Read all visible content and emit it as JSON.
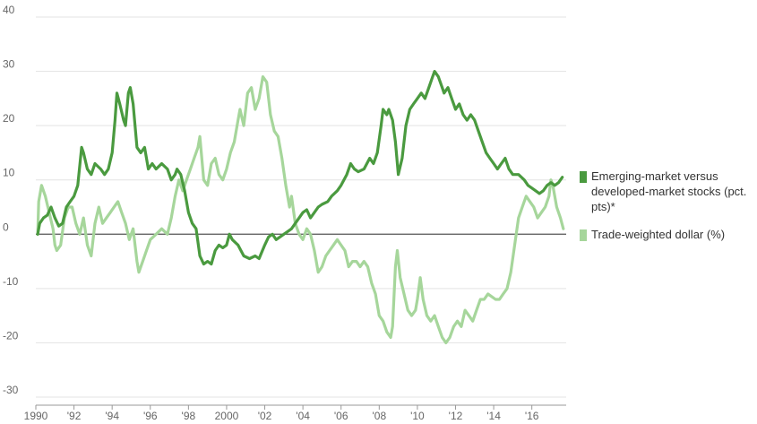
{
  "chart_data": {
    "type": "line",
    "title": "",
    "xlabel": "",
    "ylabel": "",
    "xlim": [
      1990,
      2017.8
    ],
    "ylim": [
      -30,
      40
    ],
    "yticks": [
      40,
      30,
      20,
      10,
      0,
      -10,
      -20,
      -30
    ],
    "ytick_labels": [
      "40",
      "30",
      "20",
      "10",
      "0",
      "-10",
      "-20",
      "-30"
    ],
    "xticks": [
      1990,
      1992,
      1994,
      1996,
      1998,
      2000,
      2002,
      2004,
      2006,
      2008,
      2010,
      2012,
      2014,
      2016
    ],
    "xtick_labels": [
      "1990",
      "'92",
      "'94",
      "'96",
      "'98",
      "2000",
      "'02",
      "'04",
      "'06",
      "'08",
      "'10",
      "'12",
      "'14",
      "'16"
    ],
    "grid": "horizontal",
    "legend_position": "right",
    "series": [
      {
        "name": "Emerging-market versus developed-market stocks (pct. pts)*",
        "color": "#4a9a3f",
        "points": [
          [
            1990.1,
            0
          ],
          [
            1990.2,
            2
          ],
          [
            1990.4,
            3
          ],
          [
            1990.6,
            3.5
          ],
          [
            1990.8,
            5
          ],
          [
            1991.0,
            3
          ],
          [
            1991.2,
            1.5
          ],
          [
            1991.4,
            2
          ],
          [
            1991.6,
            5
          ],
          [
            1991.8,
            6
          ],
          [
            1992.0,
            7
          ],
          [
            1992.2,
            9
          ],
          [
            1992.4,
            16
          ],
          [
            1992.5,
            15
          ],
          [
            1992.7,
            12
          ],
          [
            1992.9,
            11
          ],
          [
            1993.1,
            13
          ],
          [
            1993.4,
            12
          ],
          [
            1993.6,
            11
          ],
          [
            1993.8,
            12
          ],
          [
            1994.0,
            15
          ],
          [
            1994.15,
            21
          ],
          [
            1994.25,
            26
          ],
          [
            1994.4,
            24
          ],
          [
            1994.6,
            21
          ],
          [
            1994.7,
            20
          ],
          [
            1994.85,
            26
          ],
          [
            1994.95,
            27
          ],
          [
            1995.1,
            24
          ],
          [
            1995.3,
            16
          ],
          [
            1995.5,
            15
          ],
          [
            1995.7,
            16
          ],
          [
            1995.9,
            12
          ],
          [
            1996.1,
            13
          ],
          [
            1996.3,
            12
          ],
          [
            1996.6,
            13
          ],
          [
            1996.9,
            12
          ],
          [
            1997.1,
            10
          ],
          [
            1997.3,
            11
          ],
          [
            1997.4,
            12
          ],
          [
            1997.6,
            11
          ],
          [
            1997.8,
            8
          ],
          [
            1998.0,
            4
          ],
          [
            1998.2,
            2
          ],
          [
            1998.4,
            1
          ],
          [
            1998.6,
            -4
          ],
          [
            1998.8,
            -5.5
          ],
          [
            1999.0,
            -5
          ],
          [
            1999.2,
            -5.5
          ],
          [
            1999.4,
            -3
          ],
          [
            1999.6,
            -2
          ],
          [
            1999.8,
            -2.5
          ],
          [
            2000.0,
            -2
          ],
          [
            2000.15,
            0
          ],
          [
            2000.3,
            -1
          ],
          [
            2000.6,
            -2
          ],
          [
            2000.9,
            -4
          ],
          [
            2001.2,
            -4.5
          ],
          [
            2001.5,
            -4
          ],
          [
            2001.7,
            -4.5
          ],
          [
            2002.0,
            -2
          ],
          [
            2002.2,
            -0.5
          ],
          [
            2002.4,
            0
          ],
          [
            2002.6,
            -1
          ],
          [
            2002.8,
            -0.5
          ],
          [
            2003.0,
            0
          ],
          [
            2003.2,
            0.5
          ],
          [
            2003.4,
            1
          ],
          [
            2003.6,
            2
          ],
          [
            2003.8,
            3
          ],
          [
            2004.0,
            4
          ],
          [
            2004.2,
            4.5
          ],
          [
            2004.4,
            3
          ],
          [
            2004.6,
            4
          ],
          [
            2004.8,
            5
          ],
          [
            2005.0,
            5.5
          ],
          [
            2005.3,
            6
          ],
          [
            2005.5,
            7
          ],
          [
            2005.8,
            8
          ],
          [
            2006.0,
            9
          ],
          [
            2006.3,
            11
          ],
          [
            2006.5,
            13
          ],
          [
            2006.7,
            12
          ],
          [
            2006.9,
            11.5
          ],
          [
            2007.2,
            12
          ],
          [
            2007.5,
            14
          ],
          [
            2007.7,
            13
          ],
          [
            2007.9,
            15
          ],
          [
            2008.1,
            20
          ],
          [
            2008.2,
            23
          ],
          [
            2008.4,
            22
          ],
          [
            2008.5,
            23
          ],
          [
            2008.7,
            21
          ],
          [
            2008.85,
            17
          ],
          [
            2009.0,
            11
          ],
          [
            2009.2,
            14
          ],
          [
            2009.4,
            20
          ],
          [
            2009.6,
            23
          ],
          [
            2009.8,
            24
          ],
          [
            2010.0,
            25
          ],
          [
            2010.2,
            26
          ],
          [
            2010.4,
            25
          ],
          [
            2010.6,
            27
          ],
          [
            2010.8,
            29
          ],
          [
            2010.9,
            30
          ],
          [
            2011.1,
            29
          ],
          [
            2011.3,
            27
          ],
          [
            2011.4,
            26
          ],
          [
            2011.6,
            27
          ],
          [
            2011.8,
            25
          ],
          [
            2012.0,
            23
          ],
          [
            2012.2,
            24
          ],
          [
            2012.4,
            22
          ],
          [
            2012.6,
            21
          ],
          [
            2012.8,
            22
          ],
          [
            2013.0,
            21
          ],
          [
            2013.2,
            19
          ],
          [
            2013.4,
            17
          ],
          [
            2013.6,
            15
          ],
          [
            2013.8,
            14
          ],
          [
            2014.0,
            13
          ],
          [
            2014.2,
            12
          ],
          [
            2014.4,
            13
          ],
          [
            2014.6,
            14
          ],
          [
            2014.8,
            12
          ],
          [
            2015.0,
            11
          ],
          [
            2015.3,
            11
          ],
          [
            2015.6,
            10
          ],
          [
            2015.8,
            9
          ],
          [
            2016.0,
            8.5
          ],
          [
            2016.2,
            8
          ],
          [
            2016.4,
            7.5
          ],
          [
            2016.6,
            8
          ],
          [
            2016.8,
            9
          ],
          [
            2017.0,
            9.5
          ],
          [
            2017.2,
            9
          ],
          [
            2017.4,
            9.5
          ],
          [
            2017.6,
            10.5
          ]
        ]
      },
      {
        "name": "Trade-weighted dollar (%)",
        "color": "#a6d69b",
        "points": [
          [
            1990.1,
            0
          ],
          [
            1990.15,
            6
          ],
          [
            1990.3,
            9
          ],
          [
            1990.5,
            7
          ],
          [
            1990.7,
            4
          ],
          [
            1990.9,
            1
          ],
          [
            1991.0,
            -2
          ],
          [
            1991.1,
            -3
          ],
          [
            1991.3,
            -2
          ],
          [
            1991.5,
            3
          ],
          [
            1991.7,
            5
          ],
          [
            1991.9,
            5
          ],
          [
            1992.1,
            2
          ],
          [
            1992.3,
            0
          ],
          [
            1992.5,
            3
          ],
          [
            1992.7,
            -2
          ],
          [
            1992.9,
            -4
          ],
          [
            1993.1,
            2
          ],
          [
            1993.3,
            5
          ],
          [
            1993.5,
            2
          ],
          [
            1993.7,
            3
          ],
          [
            1993.9,
            4
          ],
          [
            1994.1,
            5
          ],
          [
            1994.3,
            6
          ],
          [
            1994.5,
            4
          ],
          [
            1994.7,
            2
          ],
          [
            1994.9,
            -1
          ],
          [
            1995.1,
            1
          ],
          [
            1995.3,
            -5
          ],
          [
            1995.4,
            -7
          ],
          [
            1995.6,
            -5
          ],
          [
            1995.8,
            -3
          ],
          [
            1996.0,
            -1
          ],
          [
            1996.3,
            0
          ],
          [
            1996.6,
            1
          ],
          [
            1996.9,
            0
          ],
          [
            1997.1,
            3
          ],
          [
            1997.3,
            7
          ],
          [
            1997.5,
            10
          ],
          [
            1997.7,
            8
          ],
          [
            1997.9,
            10
          ],
          [
            1998.1,
            12
          ],
          [
            1998.3,
            14
          ],
          [
            1998.5,
            16
          ],
          [
            1998.6,
            18
          ],
          [
            1998.8,
            10
          ],
          [
            1999.0,
            9
          ],
          [
            1999.2,
            13
          ],
          [
            1999.4,
            14
          ],
          [
            1999.6,
            11
          ],
          [
            1999.8,
            10
          ],
          [
            2000.0,
            12
          ],
          [
            2000.2,
            15
          ],
          [
            2000.4,
            17
          ],
          [
            2000.6,
            21
          ],
          [
            2000.7,
            23
          ],
          [
            2000.9,
            20
          ],
          [
            2001.1,
            26
          ],
          [
            2001.3,
            27
          ],
          [
            2001.5,
            23
          ],
          [
            2001.7,
            25
          ],
          [
            2001.9,
            29
          ],
          [
            2002.1,
            28
          ],
          [
            2002.3,
            22
          ],
          [
            2002.5,
            19
          ],
          [
            2002.7,
            18
          ],
          [
            2002.9,
            14
          ],
          [
            2003.1,
            9
          ],
          [
            2003.3,
            5
          ],
          [
            2003.4,
            7
          ],
          [
            2003.6,
            2
          ],
          [
            2003.8,
            0
          ],
          [
            2004.0,
            -1
          ],
          [
            2004.2,
            1
          ],
          [
            2004.4,
            0
          ],
          [
            2004.6,
            -3
          ],
          [
            2004.8,
            -7
          ],
          [
            2005.0,
            -6
          ],
          [
            2005.2,
            -4
          ],
          [
            2005.4,
            -3
          ],
          [
            2005.6,
            -2
          ],
          [
            2005.8,
            -1
          ],
          [
            2006.0,
            -2
          ],
          [
            2006.2,
            -3
          ],
          [
            2006.4,
            -6
          ],
          [
            2006.6,
            -5
          ],
          [
            2006.8,
            -5
          ],
          [
            2007.0,
            -6
          ],
          [
            2007.2,
            -5
          ],
          [
            2007.4,
            -6
          ],
          [
            2007.6,
            -9
          ],
          [
            2007.8,
            -11
          ],
          [
            2008.0,
            -15
          ],
          [
            2008.2,
            -16
          ],
          [
            2008.4,
            -18
          ],
          [
            2008.6,
            -19
          ],
          [
            2008.7,
            -17
          ],
          [
            2008.85,
            -6
          ],
          [
            2008.95,
            -3
          ],
          [
            2009.1,
            -8
          ],
          [
            2009.3,
            -11
          ],
          [
            2009.5,
            -14
          ],
          [
            2009.7,
            -15
          ],
          [
            2009.9,
            -14
          ],
          [
            2010.0,
            -12
          ],
          [
            2010.15,
            -8
          ],
          [
            2010.3,
            -12
          ],
          [
            2010.5,
            -15
          ],
          [
            2010.7,
            -16
          ],
          [
            2010.9,
            -15
          ],
          [
            2011.1,
            -17
          ],
          [
            2011.3,
            -19
          ],
          [
            2011.5,
            -20
          ],
          [
            2011.7,
            -19
          ],
          [
            2011.9,
            -17
          ],
          [
            2012.1,
            -16
          ],
          [
            2012.3,
            -17
          ],
          [
            2012.5,
            -14
          ],
          [
            2012.7,
            -15
          ],
          [
            2012.9,
            -16
          ],
          [
            2013.1,
            -14
          ],
          [
            2013.3,
            -12
          ],
          [
            2013.5,
            -12
          ],
          [
            2013.7,
            -11
          ],
          [
            2013.9,
            -11.5
          ],
          [
            2014.1,
            -12
          ],
          [
            2014.3,
            -12
          ],
          [
            2014.5,
            -11
          ],
          [
            2014.7,
            -10
          ],
          [
            2014.9,
            -7
          ],
          [
            2015.1,
            -2
          ],
          [
            2015.3,
            3
          ],
          [
            2015.5,
            5
          ],
          [
            2015.7,
            7
          ],
          [
            2015.9,
            6
          ],
          [
            2016.1,
            5
          ],
          [
            2016.3,
            3
          ],
          [
            2016.5,
            4
          ],
          [
            2016.7,
            5
          ],
          [
            2016.9,
            7
          ],
          [
            2017.0,
            10
          ],
          [
            2017.1,
            9
          ],
          [
            2017.3,
            5
          ],
          [
            2017.5,
            3
          ],
          [
            2017.65,
            1
          ]
        ]
      }
    ]
  }
}
